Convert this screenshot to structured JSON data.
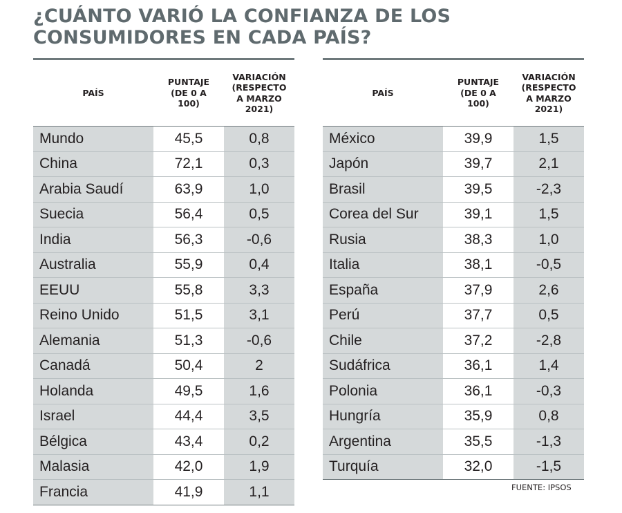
{
  "title": "¿CUÁNTO VARIÓ LA CONFIANZA DE LOS\nCONSUMIDORES EN CADA PAÍS?",
  "headers": {
    "country": "PAÍS",
    "score": "PUNTAJE\n(DE 0 A\n100)",
    "variation": "VARIACIÓN\n(RESPECTO\nA MARZO\n2021)"
  },
  "left_rows": [
    [
      "Mundo",
      "45,5",
      "0,8"
    ],
    [
      "China",
      "72,1",
      "0,3"
    ],
    [
      "Arabia Saudí",
      "63,9",
      "1,0"
    ],
    [
      "Suecia",
      "56,4",
      "0,5"
    ],
    [
      "India",
      "56,3",
      "-0,6"
    ],
    [
      "Australia",
      "55,9",
      "0,4"
    ],
    [
      "EEUU",
      "55,8",
      "3,3"
    ],
    [
      "Reino Unido",
      "51,5",
      "3,1"
    ],
    [
      "Alemania",
      "51,3",
      "-0,6"
    ],
    [
      "Canadá",
      "50,4",
      "2"
    ],
    [
      "Holanda",
      "49,5",
      "1,6"
    ],
    [
      "Israel",
      "44,4",
      "3,5"
    ],
    [
      "Bélgica",
      "43,4",
      "0,2"
    ],
    [
      "Malasia",
      "42,0",
      "1,9"
    ],
    [
      "Francia",
      "41,9",
      "1,1"
    ]
  ],
  "right_rows": [
    [
      "México",
      "39,9",
      "1,5"
    ],
    [
      "Japón",
      "39,7",
      "2,1"
    ],
    [
      "Brasil",
      "39,5",
      "-2,3"
    ],
    [
      "Corea del Sur",
      "39,1",
      "1,5"
    ],
    [
      "Rusia",
      "38,3",
      "1,0"
    ],
    [
      "Italia",
      "38,1",
      "-0,5"
    ],
    [
      "España",
      "37,9",
      "2,6"
    ],
    [
      "Perú",
      "37,7",
      "0,5"
    ],
    [
      "Chile",
      "37,2",
      "-2,8"
    ],
    [
      "Sudáfrica",
      "36,1",
      "1,4"
    ],
    [
      "Polonia",
      "36,1",
      "-0,3"
    ],
    [
      "Hungría",
      "35,9",
      "0,8"
    ],
    [
      "Argentina",
      "35,5",
      "-1,3"
    ],
    [
      "Turquía",
      "32,0",
      "-1,5"
    ]
  ],
  "source": "FUENTE: IPSOS",
  "colors": {
    "title": "#5f6a6e",
    "shaded_cell": "#d5d9da",
    "rule": "#6d787b"
  }
}
